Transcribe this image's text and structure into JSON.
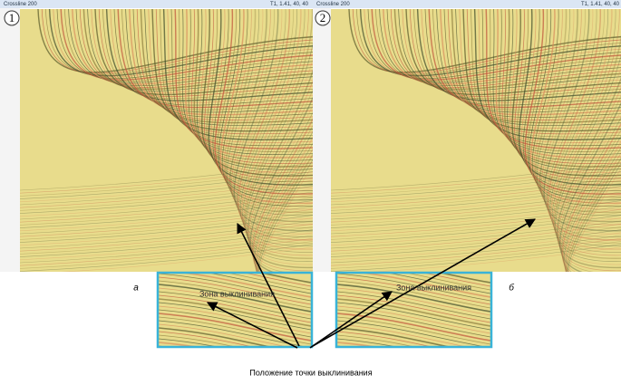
{
  "panels": [
    {
      "header_left": "Crossline 200",
      "header_right": "T1, 1.41, 40, 40",
      "number": "1",
      "letter": "а",
      "zone_label": "Зона выклинивания"
    },
    {
      "header_left": "Crossline 200",
      "header_right": "T1, 1.41, 40, 40",
      "number": "2",
      "letter": "б",
      "zone_label": "Зона выклинивания"
    }
  ],
  "caption": "Положение точки выклинивания"
}
